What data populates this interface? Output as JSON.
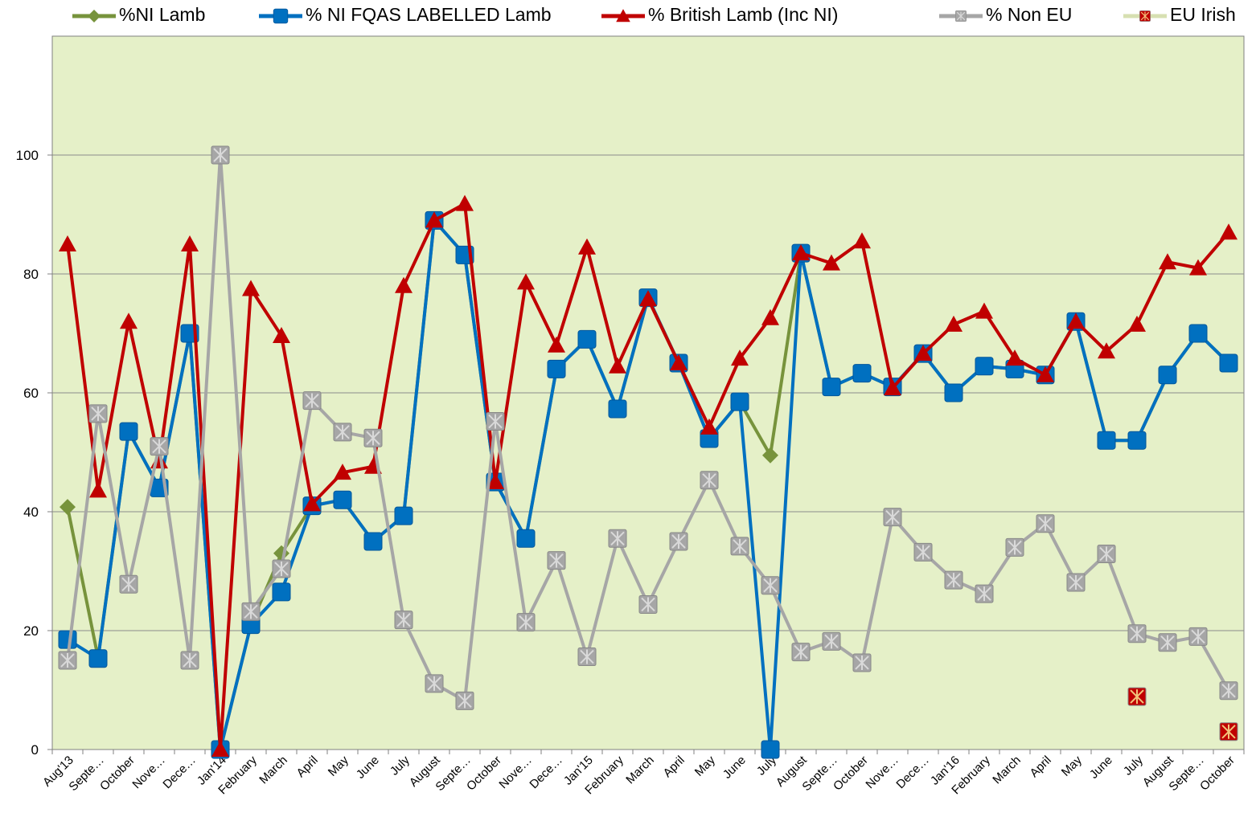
{
  "chart_data": {
    "type": "line",
    "categories": [
      "Aug'13",
      "Septe…",
      "October",
      "Nove…",
      "Dece…",
      "Jan'14",
      "February",
      "March",
      "April",
      "May",
      "June",
      "July",
      "August",
      "Septe…",
      "October",
      "Nove…",
      "Dece…",
      "Jan'15",
      "February",
      "March",
      "April",
      "May",
      "June",
      "July",
      "August",
      "Septe…",
      "October",
      "Nove…",
      "Dece…",
      "Jan'16",
      "February",
      "March",
      "April",
      "May",
      "June",
      "July",
      "August",
      "Septe…",
      "October"
    ],
    "series": [
      {
        "name": "%NI Lamb",
        "color": "#77933c",
        "marker": "diamond",
        "marker_color": "#77933c",
        "values": [
          40.8,
          15.4,
          53.5,
          44,
          70,
          0,
          21,
          33,
          41,
          42,
          35,
          39.3,
          89,
          83.2,
          45,
          35.5,
          64,
          69,
          57.3,
          76,
          65,
          52.3,
          58.5,
          49.5,
          83.5,
          61,
          63.3,
          61,
          66.6,
          60,
          64.5,
          64,
          63,
          72,
          52,
          52,
          63,
          70,
          65
        ]
      },
      {
        "name": "% NI FQAS LABELLED Lamb",
        "color": "#0070c0",
        "marker": "square",
        "marker_color": "#0070c0",
        "values": [
          18.5,
          15.3,
          53.5,
          44,
          70,
          0,
          21,
          26.5,
          41,
          42,
          35,
          39.3,
          89,
          83.2,
          45,
          35.5,
          64,
          69,
          57.3,
          76,
          65,
          52.3,
          58.5,
          0,
          83.5,
          61,
          63.3,
          61,
          66.6,
          60,
          64.5,
          64,
          63,
          72,
          52,
          52,
          63,
          70,
          65
        ]
      },
      {
        "name": "% British Lamb (Inc NI)",
        "color": "#c00000",
        "marker": "triangle",
        "marker_color": "#c00000",
        "values": [
          85,
          43.6,
          72,
          48.5,
          85,
          0,
          77.5,
          69.6,
          41.3,
          46.6,
          47.6,
          78,
          89,
          91.8,
          45,
          78.6,
          68,
          84.5,
          64.5,
          75.8,
          65,
          54.2,
          65.8,
          72.6,
          83.5,
          81.8,
          85.5,
          60.8,
          66.6,
          71.5,
          73.7,
          65.8,
          63,
          72,
          67,
          71.5,
          82,
          81,
          87
        ]
      },
      {
        "name": "% Non EU",
        "color": "#a6a6a6",
        "marker": "x-square",
        "marker_color": "#a6a6a6",
        "values": [
          15,
          56.5,
          27.8,
          51,
          15,
          100,
          23.2,
          30.4,
          58.7,
          53.4,
          52.4,
          21.8,
          11.1,
          8.2,
          55.2,
          21.4,
          31.8,
          15.6,
          35.5,
          24.4,
          35,
          45.3,
          34.2,
          27.6,
          16.4,
          18.2,
          14.6,
          39.1,
          33.2,
          28.5,
          26.2,
          34,
          38,
          28.1,
          32.9,
          19.5,
          18,
          19,
          9.9
        ]
      },
      {
        "name": "EU Irish",
        "color": "#d7e0b2",
        "marker": "x-square",
        "marker_color": "#c00000",
        "values": [
          null,
          null,
          null,
          null,
          null,
          null,
          null,
          null,
          null,
          null,
          null,
          null,
          null,
          null,
          null,
          null,
          null,
          null,
          null,
          null,
          null,
          null,
          null,
          null,
          null,
          null,
          null,
          null,
          null,
          null,
          null,
          null,
          null,
          null,
          null,
          8.9,
          null,
          null,
          3
        ]
      }
    ],
    "ylim": [
      0,
      120
    ],
    "yticks": [
      0,
      20,
      40,
      60,
      80,
      100
    ],
    "grid": true,
    "legend": "top",
    "plot_background": "#e5f0c8"
  }
}
